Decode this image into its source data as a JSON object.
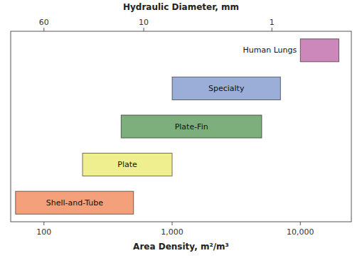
{
  "chart_data": {
    "type": "bar",
    "orientation": "horizontal",
    "x_label": "Area Density,  m²/m³",
    "x2_label": "Hydraulic Diameter,  mm",
    "categories": [
      "Shell-and-Tube",
      "Plate",
      "Plate-Fin",
      "Specialty",
      "Human Lungs"
    ],
    "starts": [
      60,
      200,
      400,
      1000,
      10000
    ],
    "values": [
      500,
      1000,
      5000,
      7000,
      20000
    ],
    "colors": [
      "#F4A07A",
      "#EFEF90",
      "#7DAF7D",
      "#9BAED8",
      "#CC88BB"
    ],
    "log": "x",
    "xlim": [
      55,
      25000
    ],
    "xticks": [
      100,
      {
        "value": 1000,
        "label": "1,000"
      },
      {
        "value": 10000,
        "label": "10,000"
      }
    ],
    "x2lim": [
      109.0909090909091,
      0.24
    ],
    "x2ticks": [
      60,
      10,
      1
    ],
    "grid": false,
    "tick_labels": "x"
  }
}
